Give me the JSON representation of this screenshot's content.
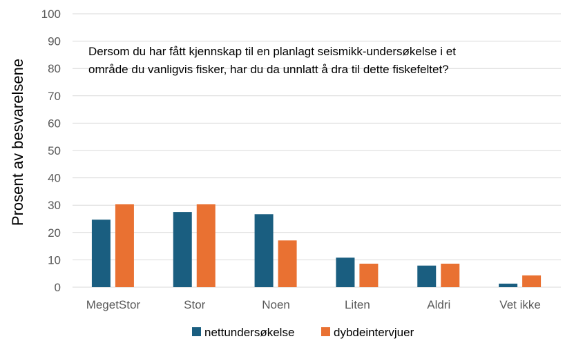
{
  "chart_data": {
    "type": "bar",
    "title": "",
    "annotation": [
      "Dersom du har fått kjennskap til en planlagt seismikk-undersøkelse i et",
      "område du vanligvis fisker, har du da unnlatt å dra til dette fiskefeltet?"
    ],
    "xlabel": "",
    "ylabel": "Prosent av besvarelsene",
    "ylim": [
      0,
      100
    ],
    "yticks": [
      0,
      10,
      20,
      30,
      40,
      50,
      60,
      70,
      80,
      90,
      100
    ],
    "grid": true,
    "legend_position": "bottom",
    "categories": [
      "MegetStor",
      "Stor",
      "Noen",
      "Liten",
      "Aldri",
      "Vet ikke"
    ],
    "series": [
      {
        "name": "nettundersøkelse",
        "color": "#1a5e80",
        "values": [
          24.7,
          27.5,
          26.7,
          10.8,
          7.9,
          1.3
        ]
      },
      {
        "name": "dybdeintervjuer",
        "color": "#e97132",
        "values": [
          30.3,
          30.3,
          17.1,
          8.6,
          8.6,
          4.3
        ]
      }
    ]
  }
}
